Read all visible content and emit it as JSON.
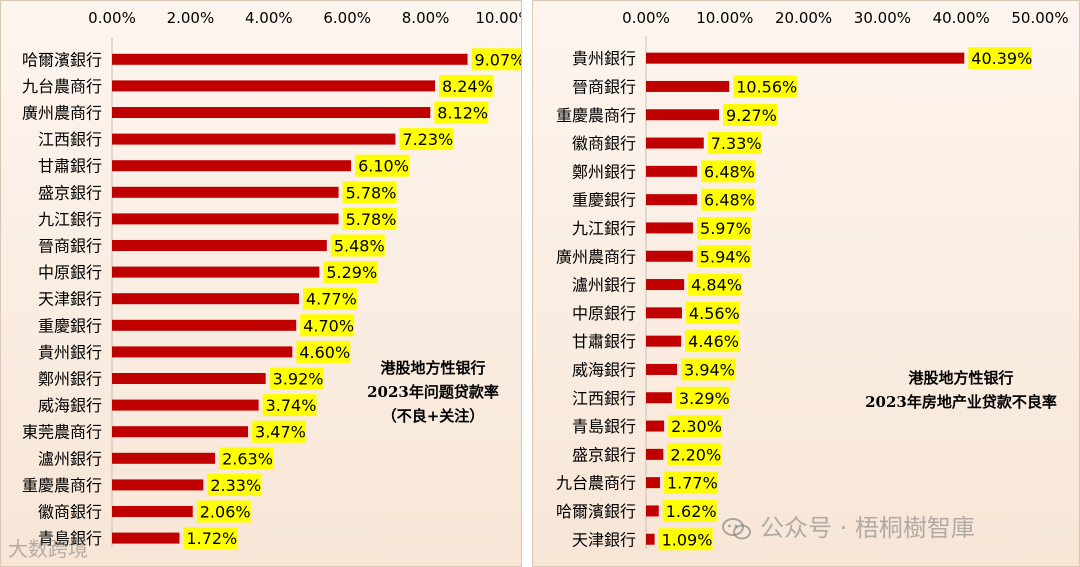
{
  "chart_data": [
    {
      "type": "bar",
      "orientation": "horizontal",
      "title": "港股地方性銀行\n2023年问题贷款率\n（不良+关注）",
      "title_lines": [
        "港股地方性银行",
        "2023年问题贷款率",
        "（不良+关注）"
      ],
      "xlim": [
        0,
        10
      ],
      "x_ticks": [
        "0.00%",
        "2.00%",
        "4.00%",
        "6.00%",
        "8.00%",
        "10.00%"
      ],
      "categories": [
        "哈爾濱銀行",
        "九台農商行",
        "廣州農商行",
        "江西銀行",
        "甘肅銀行",
        "盛京銀行",
        "九江銀行",
        "晉商銀行",
        "中原銀行",
        "天津銀行",
        "重慶銀行",
        "貴州銀行",
        "鄭州銀行",
        "威海銀行",
        "東莞農商行",
        "瀘州銀行",
        "重慶農商行",
        "徽商銀行",
        "青島銀行"
      ],
      "values": [
        9.07,
        8.24,
        8.12,
        7.23,
        6.1,
        5.78,
        5.78,
        5.48,
        5.29,
        4.77,
        4.7,
        4.6,
        3.92,
        3.74,
        3.47,
        2.63,
        2.33,
        2.06,
        1.72
      ],
      "labels": [
        "9.07%",
        "8.24%",
        "8.12%",
        "7.23%",
        "6.10%",
        "5.78%",
        "5.78%",
        "5.48%",
        "5.29%",
        "4.77%",
        "4.70%",
        "4.60%",
        "3.92%",
        "3.74%",
        "3.47%",
        "2.63%",
        "2.33%",
        "2.06%",
        "1.72%"
      ]
    },
    {
      "type": "bar",
      "orientation": "horizontal",
      "title_lines": [
        "港股地方性银行",
        "2023年房地产业贷款不良率"
      ],
      "xlim": [
        0,
        50
      ],
      "x_ticks": [
        "0.00%",
        "10.00%",
        "20.00%",
        "30.00%",
        "40.00%",
        "50.00%"
      ],
      "categories": [
        "貴州銀行",
        "晉商銀行",
        "重慶農商行",
        "徽商銀行",
        "鄭州銀行",
        "重慶銀行",
        "九江銀行",
        "廣州農商行",
        "瀘州銀行",
        "中原銀行",
        "甘肅銀行",
        "威海銀行",
        "江西銀行",
        "青島銀行",
        "盛京銀行",
        "九台農商行",
        "哈爾濱銀行",
        "天津銀行"
      ],
      "values": [
        40.39,
        10.56,
        9.27,
        7.33,
        6.48,
        6.48,
        5.97,
        5.94,
        4.84,
        4.56,
        4.46,
        3.94,
        3.29,
        2.3,
        2.2,
        1.77,
        1.62,
        1.09
      ],
      "labels": [
        "40.39%",
        "10.56%",
        "9.27%",
        "7.33%",
        "6.48%",
        "6.48%",
        "5.97%",
        "5.94%",
        "4.84%",
        "4.56%",
        "4.46%",
        "3.94%",
        "3.29%",
        "2.30%",
        "2.20%",
        "1.77%",
        "1.62%",
        "1.09%"
      ]
    }
  ],
  "colors": {
    "bar": "#c00000",
    "label_bg": "#ffff00",
    "text": "#000000"
  },
  "watermarks": {
    "right": "公众号 · 梧桐樹智庫",
    "left": "大数跨境"
  }
}
